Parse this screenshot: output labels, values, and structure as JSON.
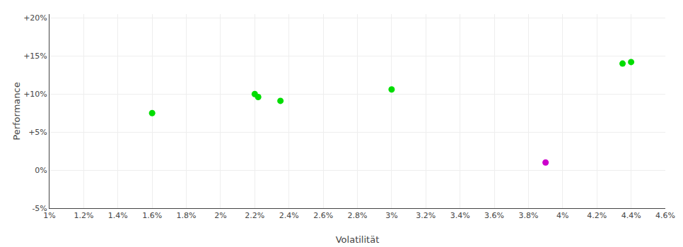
{
  "chart_data": {
    "type": "scatter",
    "x_label": "Volatilität",
    "y_label": "Performance",
    "series": [
      {
        "color": "#00dd00",
        "marker": "circle",
        "x": [
          0.016,
          0.022,
          0.0222,
          0.0235,
          0.03,
          0.0435,
          0.044
        ],
        "values": [
          0.075,
          0.1,
          0.096,
          0.091,
          0.106,
          0.14,
          0.142
        ]
      },
      {
        "color": "#cc00cc",
        "marker": "circle",
        "x": [
          0.039
        ],
        "values": [
          0.01
        ]
      }
    ],
    "xlim": [
      0.01,
      0.046
    ],
    "ylim": [
      -0.05,
      0.205
    ],
    "xticks": [
      {
        "value": 0.01,
        "label": "1%"
      },
      {
        "value": 0.012,
        "label": "1.2%"
      },
      {
        "value": 0.014,
        "label": "1.4%"
      },
      {
        "value": 0.016,
        "label": "1.6%"
      },
      {
        "value": 0.018,
        "label": "1.8%"
      },
      {
        "value": 0.02,
        "label": "2%"
      },
      {
        "value": 0.022,
        "label": "2.2%"
      },
      {
        "value": 0.024,
        "label": "2.4%"
      },
      {
        "value": 0.026,
        "label": "2.6%"
      },
      {
        "value": 0.028,
        "label": "2.8%"
      },
      {
        "value": 0.03,
        "label": "3%"
      },
      {
        "value": 0.032,
        "label": "3.2%"
      },
      {
        "value": 0.034,
        "label": "3.4%"
      },
      {
        "value": 0.036,
        "label": "3.6%"
      },
      {
        "value": 0.038,
        "label": "3.8%"
      },
      {
        "value": 0.04,
        "label": "4%"
      },
      {
        "value": 0.042,
        "label": "4.2%"
      },
      {
        "value": 0.044,
        "label": "4.4%"
      },
      {
        "value": 0.046,
        "label": "4.6%"
      }
    ],
    "yticks": [
      {
        "value": -0.05,
        "label": "-5%"
      },
      {
        "value": 0.0,
        "label": "0%"
      },
      {
        "value": 0.05,
        "label": "+5%"
      },
      {
        "value": 0.1,
        "label": "+10%"
      },
      {
        "value": 0.15,
        "label": "+15%"
      },
      {
        "value": 0.2,
        "label": "+20%"
      }
    ],
    "grid": true
  }
}
